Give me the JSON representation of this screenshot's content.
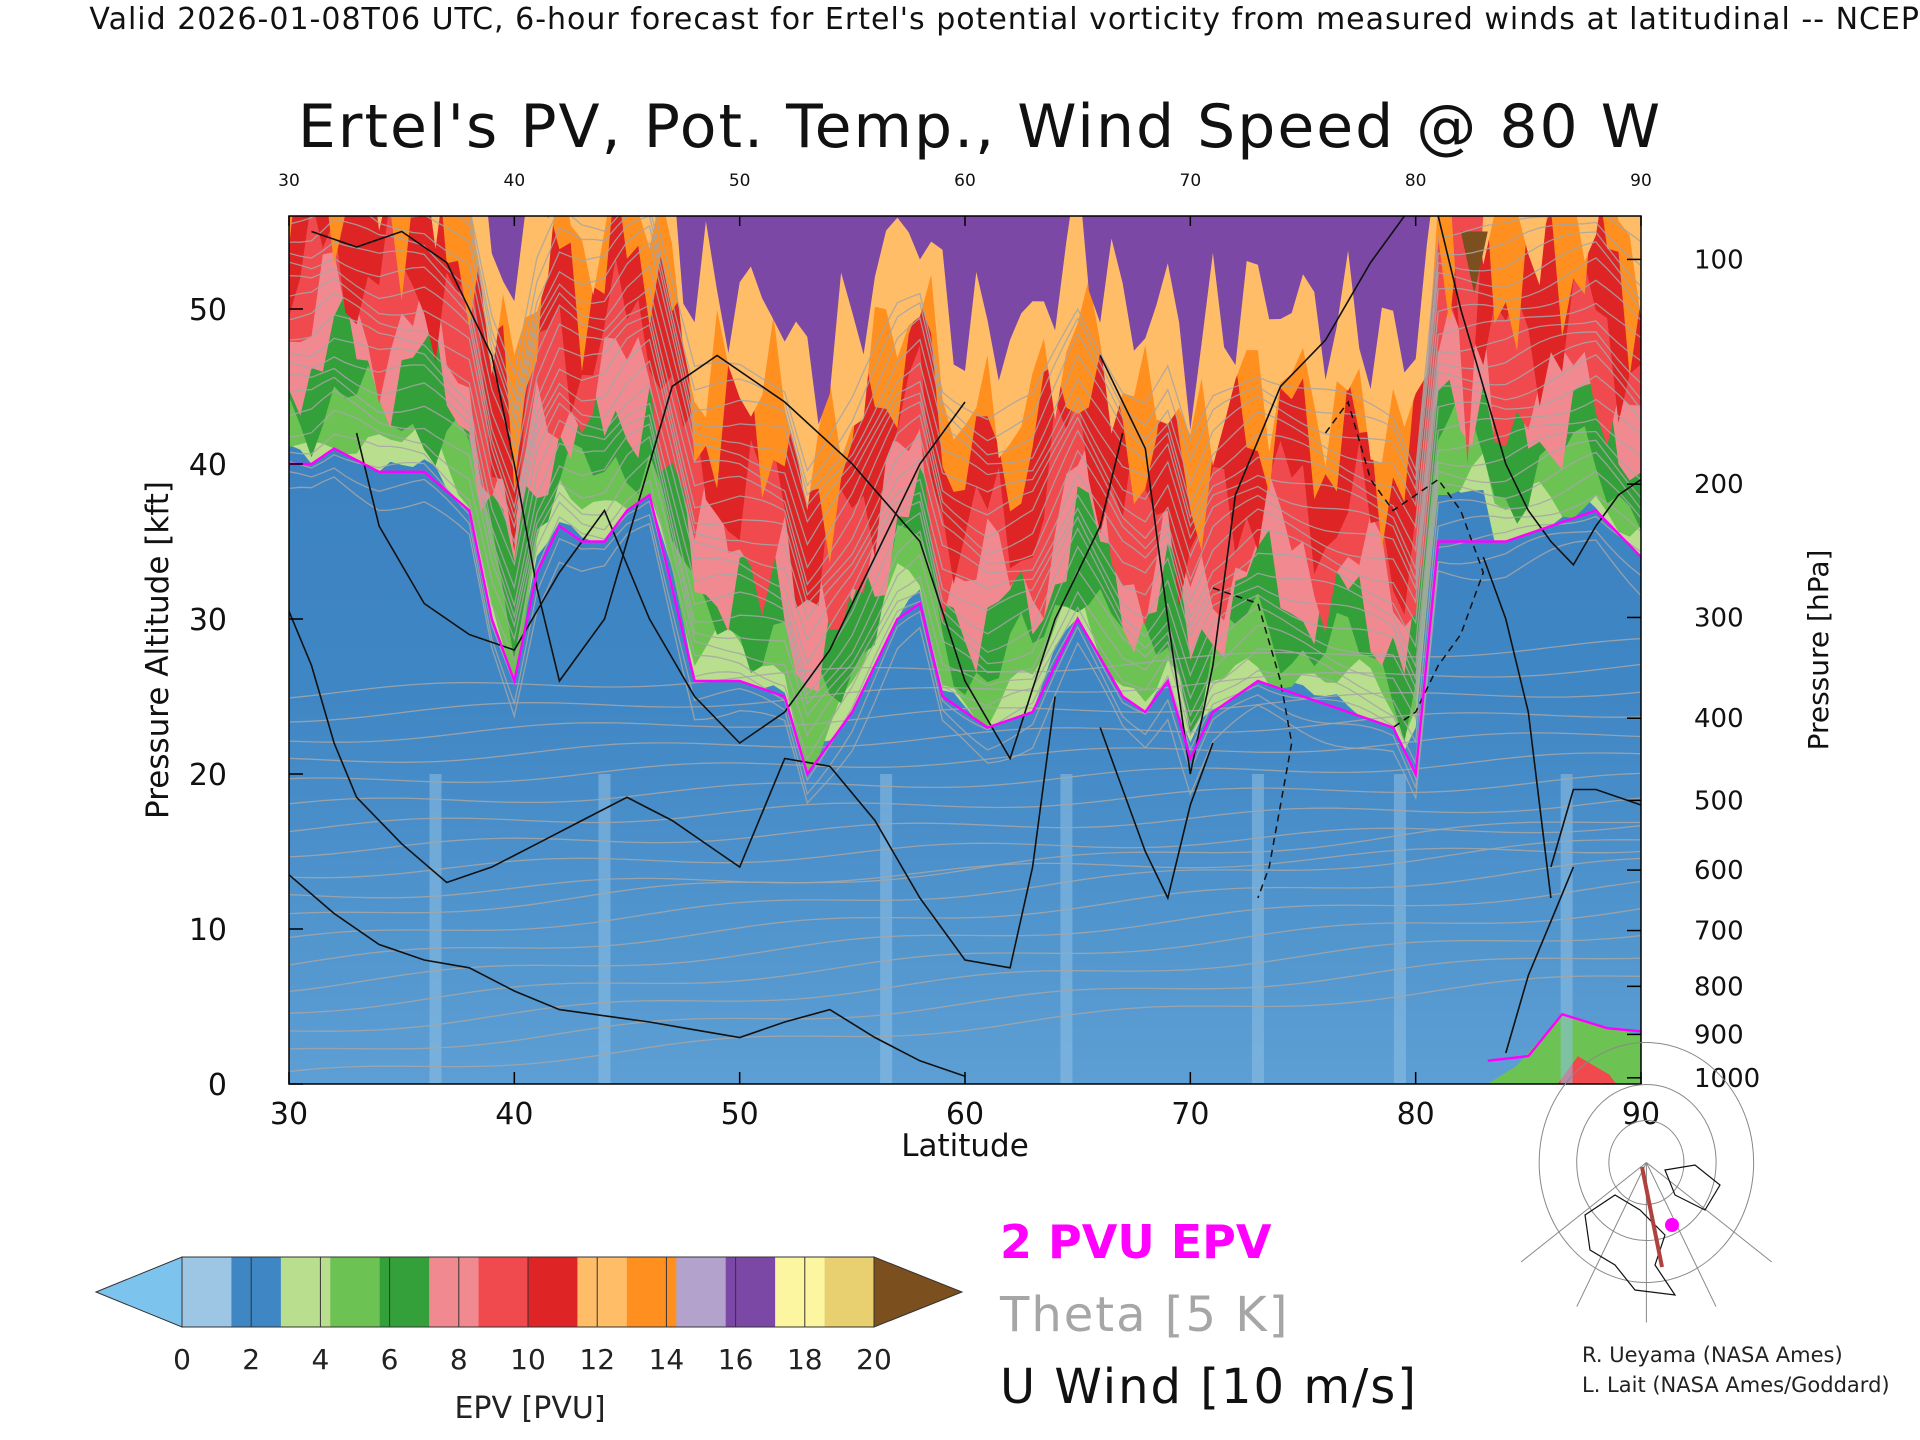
{
  "header": {
    "text": "Valid 2026-01-08T06 UTC, 6-hour forecast for Ertel's potential vorticity from measured winds at latitudinal -- NCEP"
  },
  "chart_data": {
    "type": "heatmap",
    "title": "Ertel's PV, Pot. Temp., Wind Speed @ 80 W",
    "xlabel": "Latitude",
    "ylabel": "Pressure Altitude [kft]",
    "y2label": "Pressure [hPa]",
    "xlim": [
      30,
      90
    ],
    "ylim": [
      0,
      56
    ],
    "x_ticks": [
      "30",
      "40",
      "50",
      "60",
      "70",
      "80",
      "90"
    ],
    "top_ticks": [
      "30",
      "40",
      "50",
      "60",
      "70",
      "80",
      "90"
    ],
    "y_ticks": [
      "0",
      "10",
      "20",
      "30",
      "40",
      "50"
    ],
    "pressure_ticks": [
      {
        "label": "1000",
        "kft": 0.4
      },
      {
        "label": "900",
        "kft": 3.2
      },
      {
        "label": "800",
        "kft": 6.3
      },
      {
        "label": "700",
        "kft": 9.9
      },
      {
        "label": "600",
        "kft": 13.8
      },
      {
        "label": "500",
        "kft": 18.3
      },
      {
        "label": "400",
        "kft": 23.6
      },
      {
        "label": "300",
        "kft": 30.1
      },
      {
        "label": "200",
        "kft": 38.7
      },
      {
        "label": "100",
        "kft": 53.2
      }
    ],
    "tropopause_2pvu": {
      "lat": [
        30,
        31,
        32,
        34,
        36,
        38,
        39,
        40,
        41,
        42,
        43,
        44,
        45,
        46,
        47,
        48,
        50,
        52,
        53,
        55,
        57,
        58,
        59,
        61,
        63,
        65,
        67,
        68,
        69,
        70,
        71,
        73,
        75,
        77,
        79,
        80,
        81,
        82,
        84,
        86,
        88,
        90
      ],
      "kft": [
        40,
        40,
        41,
        39.5,
        39.5,
        37,
        30,
        26,
        33,
        36,
        35,
        35,
        37,
        38,
        32,
        26,
        26,
        25,
        20,
        24,
        30,
        31,
        25,
        23,
        24,
        30,
        25,
        24,
        26,
        21,
        24,
        26,
        25,
        24,
        23,
        20,
        35,
        35,
        35,
        36,
        37,
        34
      ]
    },
    "colorbar": {
      "label": "EPV [PVU]",
      "tick_labels": [
        "0",
        "2",
        "4",
        "6",
        "8",
        "10",
        "12",
        "14",
        "16",
        "18",
        "20"
      ],
      "colors": [
        "#9cc6e4",
        "#3f86c4",
        "#b9df8e",
        "#6cc354",
        "#34a03a",
        "#f08a90",
        "#f04a4f",
        "#de2424",
        "#ffbd68",
        "#ff8f1f",
        "#b3a3cc",
        "#7c48a6",
        "#fdf6a0",
        "#e8d070"
      ],
      "under_color": "#7cc3ee",
      "over_color": "#7b4f1e"
    },
    "legend": {
      "epv": "2 PVU EPV",
      "theta": "Theta [5 K]",
      "wind": "U Wind [10 m/s]"
    },
    "colors": {
      "pv_contour": "#ff00ff",
      "theta": "#a6a6a6",
      "wind": "#111111",
      "track": "#b0413e",
      "marker": "#ff00ff"
    }
  },
  "credits": [
    "R. Ueyama (NASA Ames)",
    "L. Lait (NASA Ames/Goddard)"
  ]
}
